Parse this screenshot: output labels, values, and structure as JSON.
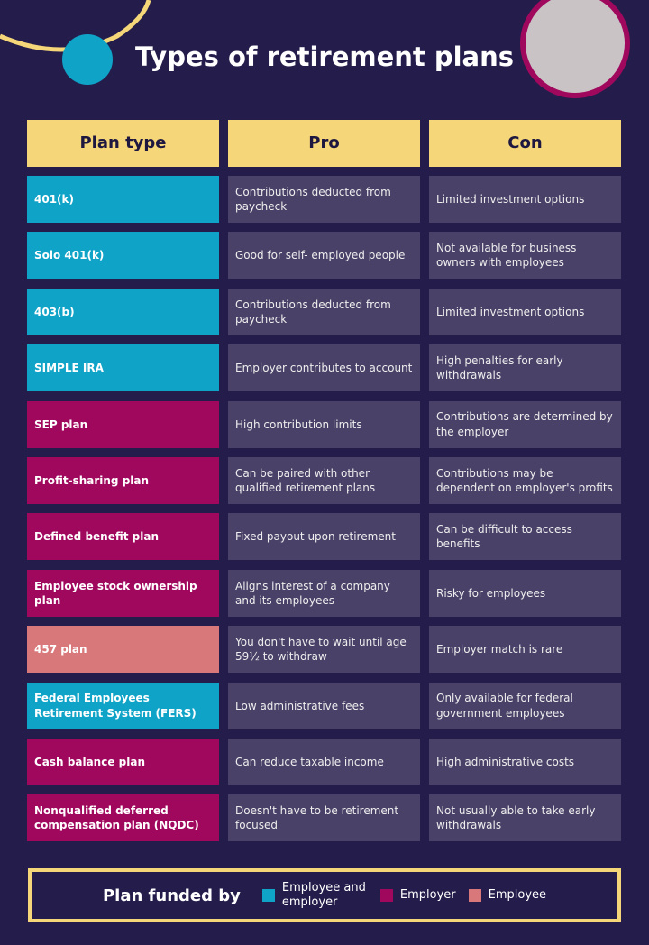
{
  "title": "Types of retirement plans",
  "table": {
    "header": [
      "Plan type",
      "Pro",
      "Con"
    ],
    "rows": [
      {
        "plan": "401(k)",
        "pro": "Contributions deducted from paycheck",
        "con": "Limited investment options",
        "color": "#0fa3c8"
      },
      {
        "plan": "Solo 401(k)",
        "pro": "Good for self- employed people",
        "con": "Not available for business owners with employees",
        "color": "#0fa3c8"
      },
      {
        "plan": "403(b)",
        "pro": "Contributions deducted from paycheck",
        "con": "Limited investment options",
        "color": "#0fa3c8"
      },
      {
        "plan": "SIMPLE IRA",
        "pro": "Employer contributes to account",
        "con": "High penalties for early withdrawals",
        "color": "#0fa3c8"
      },
      {
        "plan": "SEP plan",
        "pro": "High contribution limits",
        "con": "Contributions are determined by the employer",
        "color": "#a0085e"
      },
      {
        "plan": "Profit-sharing plan",
        "pro": "Can be paired with other qualified retirement plans",
        "con": "Contributions may be dependent on employer's profits",
        "color": "#a0085e"
      },
      {
        "plan": "Defined benefit plan",
        "pro": "Fixed payout upon retirement",
        "con": "Can be difficult to access benefits",
        "color": "#a0085e"
      },
      {
        "plan": "Employee stock ownership plan",
        "pro": "Aligns interest of a company and its employees",
        "con": "Risky for employees",
        "color": "#a0085e"
      },
      {
        "plan": "457 plan",
        "pro": "You don't have to wait until age 59½ to withdraw",
        "con": "Employer match is rare",
        "color": "#d9787a"
      },
      {
        "plan": "Federal Employees Retirement System (FERS)",
        "pro": "Low administrative fees",
        "con": "Only available for federal government employees",
        "color": "#0fa3c8"
      },
      {
        "plan": "Cash balance plan",
        "pro": "Can reduce taxable income",
        "con": "High administrative costs",
        "color": "#a0085e"
      },
      {
        "plan": "Nonqualified deferred compensation plan (NQDC)",
        "pro": "Doesn't have to be retirement focused",
        "con": "Not usually able to take early withdrawals",
        "color": "#a0085e"
      }
    ]
  },
  "legend": {
    "title": "Plan funded by",
    "items": [
      {
        "name": "Employee and employer",
        "color": "#0fa3c8"
      },
      {
        "name": "Employer",
        "color": "#a0085e"
      },
      {
        "name": "Employee",
        "color": "#d9787a"
      }
    ]
  }
}
